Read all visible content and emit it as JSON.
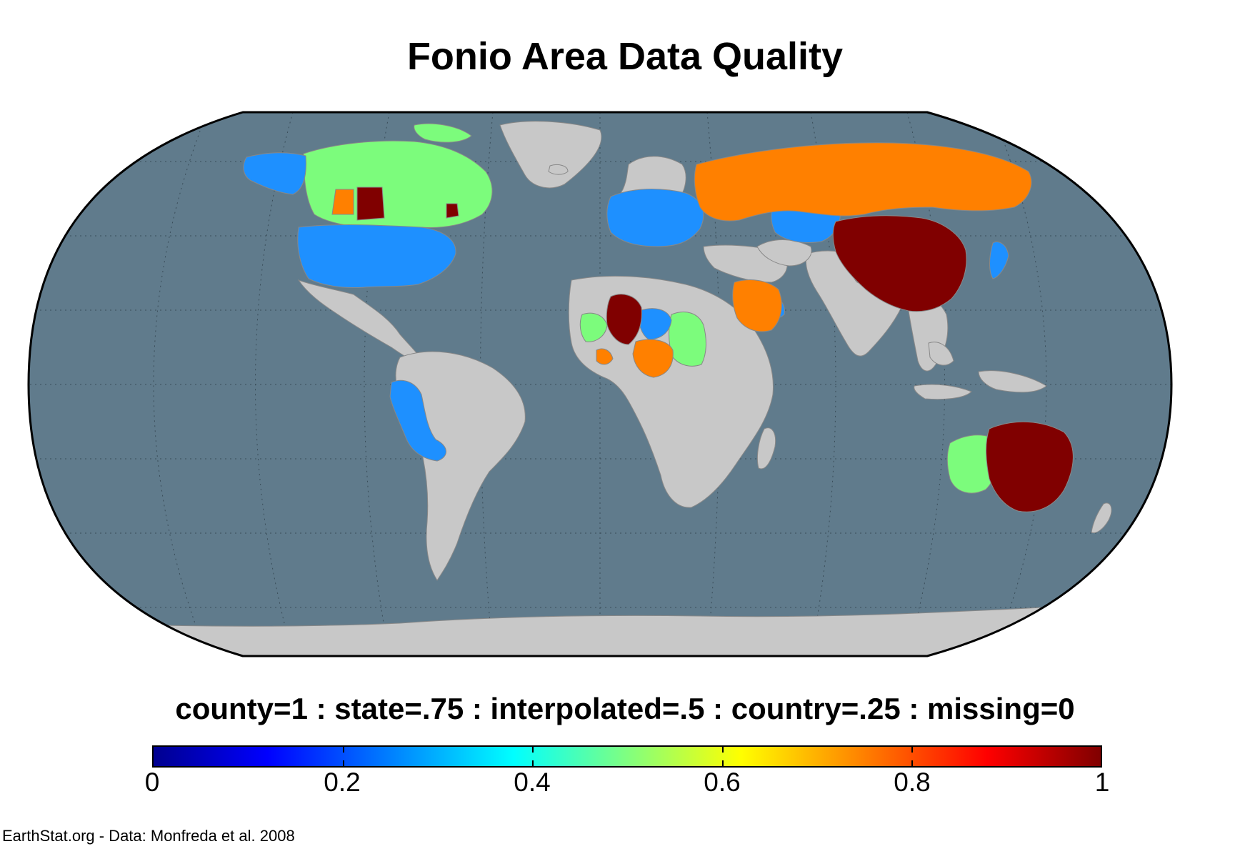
{
  "title": "Fonio Area Data Quality",
  "legend": {
    "caption": "county=1 : state=.75 : interpolated=.5 : country=.25 : missing=0",
    "ticks": [
      "0",
      "0.2",
      "0.4",
      "0.6",
      "0.8",
      "1"
    ],
    "range": [
      0,
      1
    ],
    "colormap": "jet"
  },
  "credit": "EarthStat.org - Data: Monfreda et al. 2008",
  "colors": {
    "ocean": "#607b8c",
    "no_data_land": "#c8c8c8",
    "country_025": "#1e90ff",
    "interpolated_05": "#7cfc7c",
    "state_075": "#ff8000",
    "county_1": "#800000"
  },
  "regions": [
    {
      "name": "Canada",
      "value": 0.5
    },
    {
      "name": "Alaska",
      "value": 0.25
    },
    {
      "name": "Canadian Prairies",
      "value": 1
    },
    {
      "name": "United States",
      "value": 0.25
    },
    {
      "name": "Russia",
      "value": 0.75
    },
    {
      "name": "China",
      "value": 1
    },
    {
      "name": "Europe",
      "value": 0.25
    },
    {
      "name": "Kazakhstan",
      "value": 0.25
    },
    {
      "name": "Japan",
      "value": 0.25
    },
    {
      "name": "Saudi Arabia",
      "value": 0.75
    },
    {
      "name": "Mali",
      "value": 1
    },
    {
      "name": "Niger",
      "value": 0.25
    },
    {
      "name": "Nigeria",
      "value": 0.75
    },
    {
      "name": "Chad",
      "value": 0.5
    },
    {
      "name": "Senegal",
      "value": 0.5
    },
    {
      "name": "Peru",
      "value": 0.25
    },
    {
      "name": "Bolivia",
      "value": 0.25
    },
    {
      "name": "Australia",
      "value": 1
    },
    {
      "name": "Western Australia",
      "value": 0.5
    }
  ]
}
